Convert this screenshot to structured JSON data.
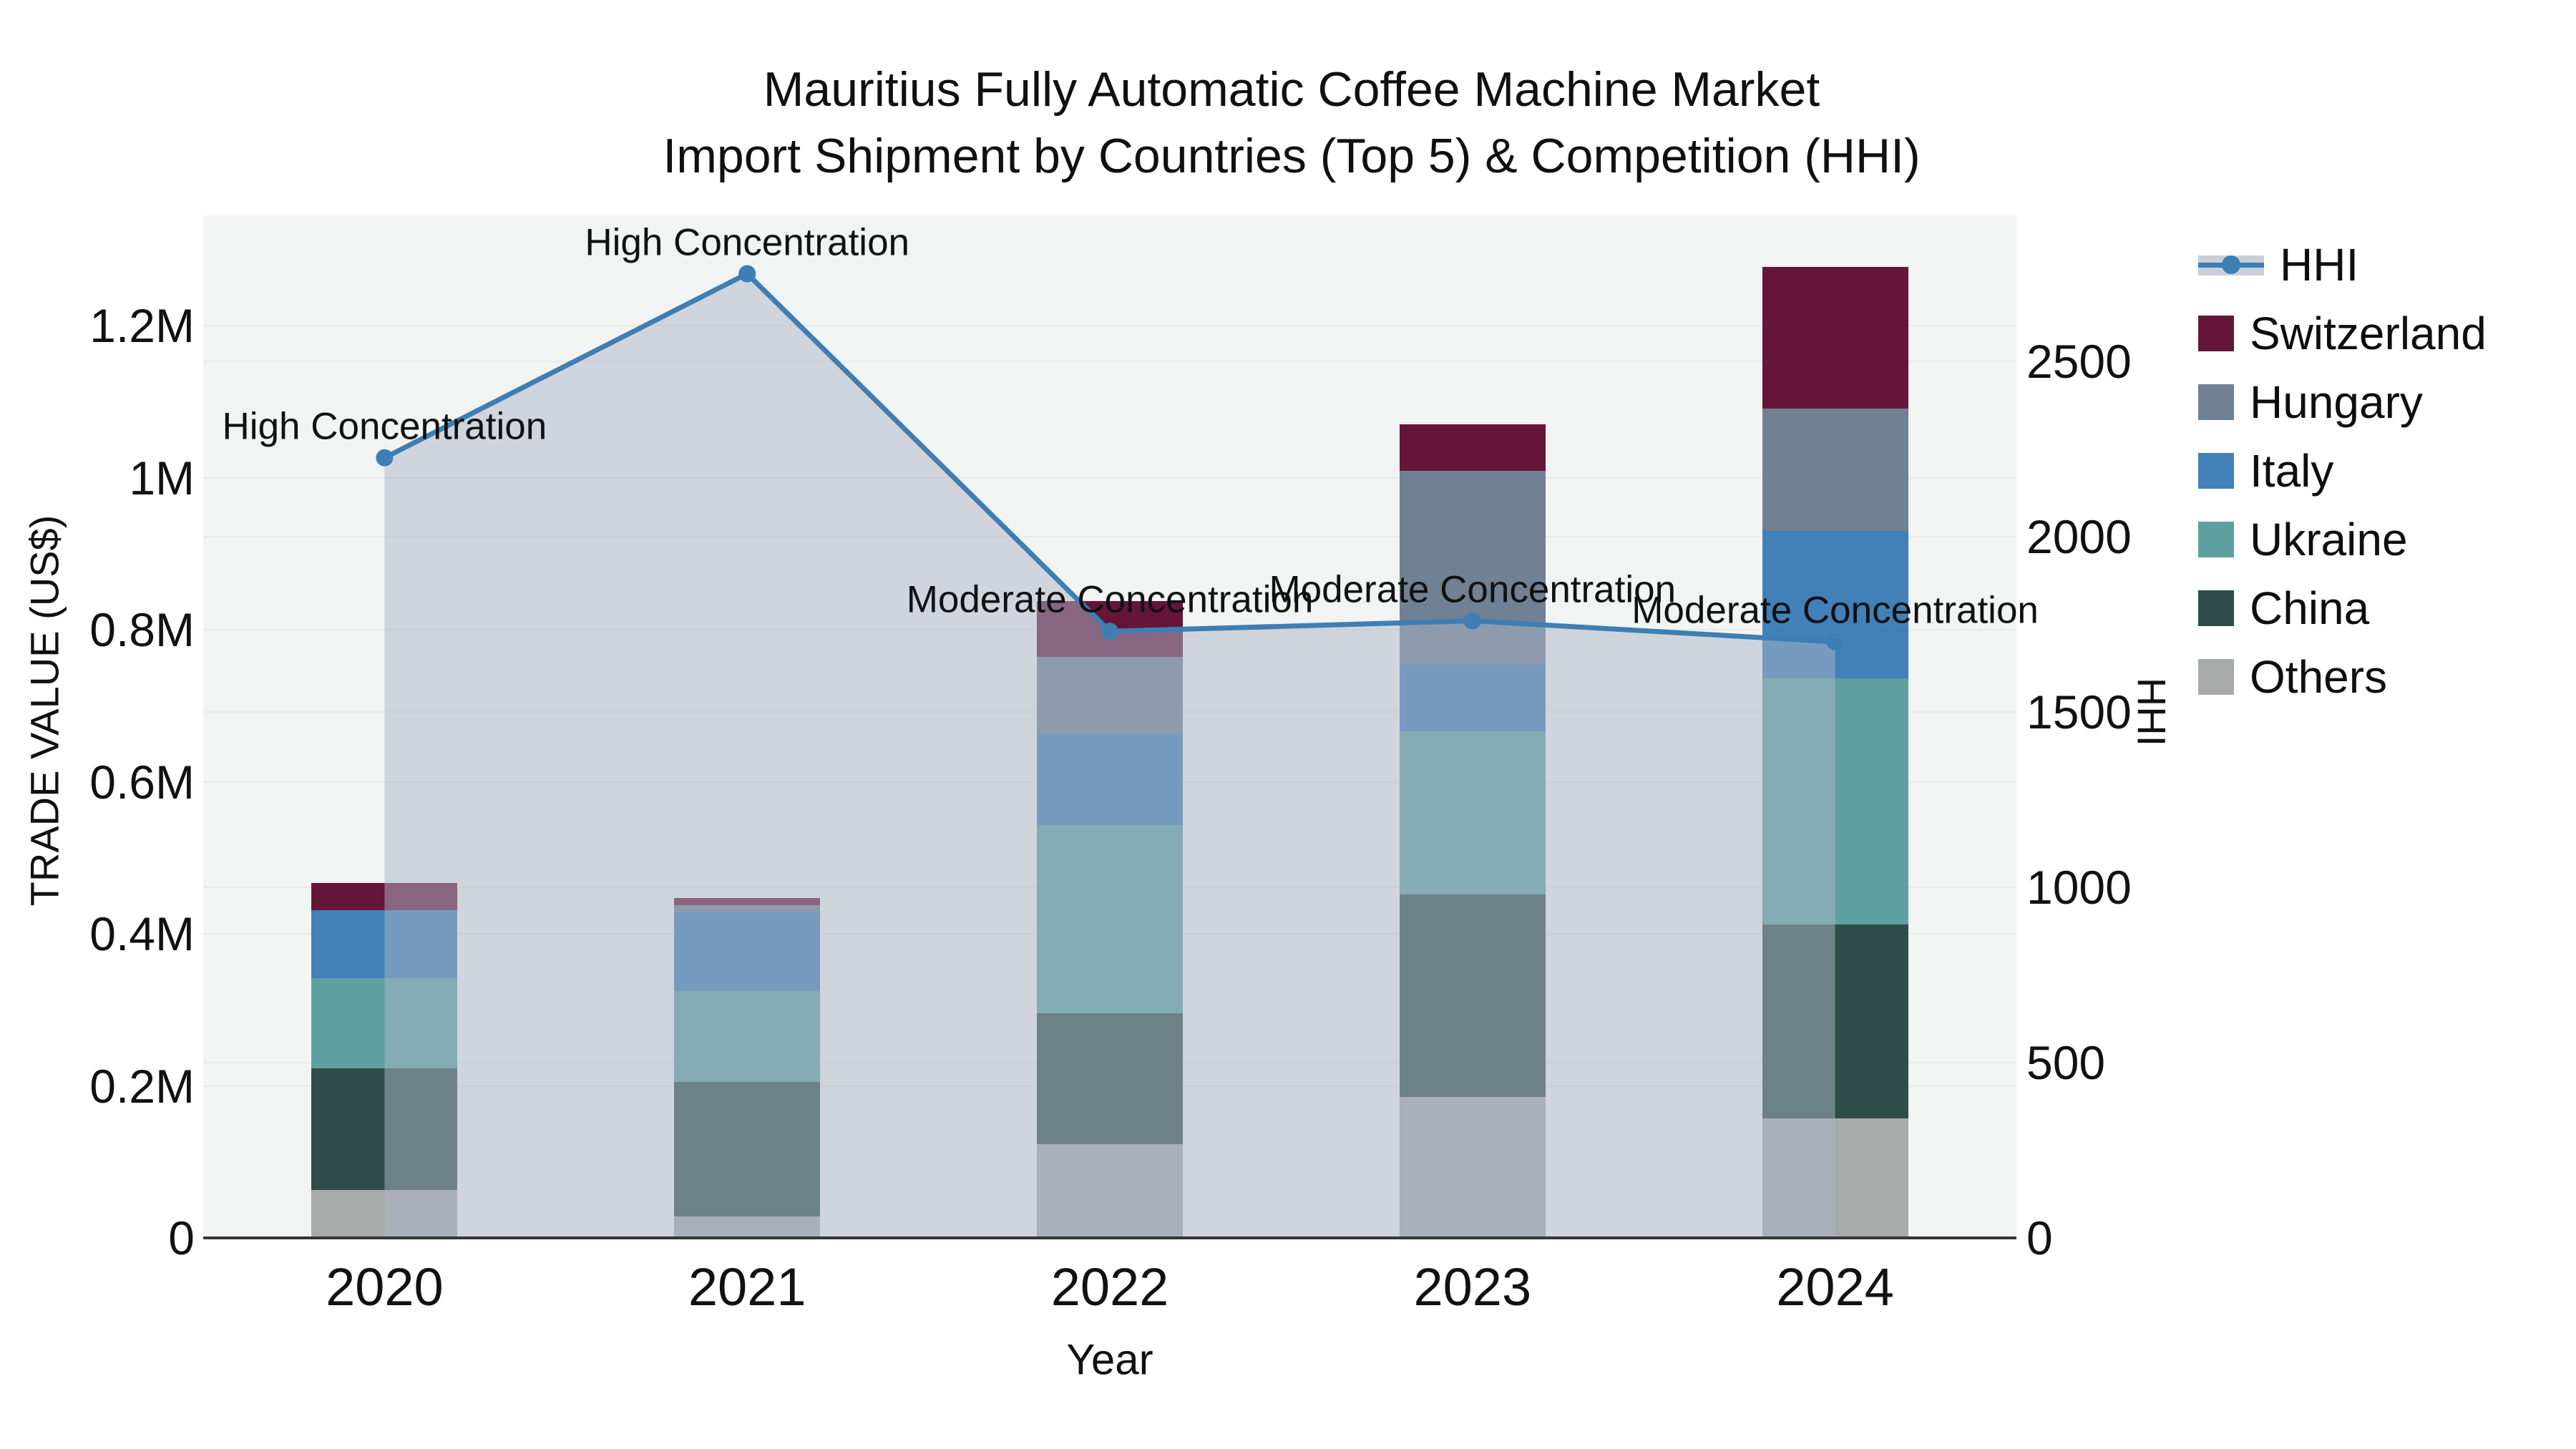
{
  "title": {
    "line1": "Mauritius Fully Automatic Coffee Machine Market",
    "line2": "Import Shipment by Countries (Top 5) & Competition (HHI)"
  },
  "chart_data": {
    "type": "combo: stacked bar (trade value) + line/area (HHI) on secondary axis",
    "categories": [
      "2020",
      "2021",
      "2022",
      "2023",
      "2024"
    ],
    "bar_series_bottom_to_top": [
      {
        "name": "Others",
        "color": "#a9abab",
        "values": [
          63000,
          28000,
          123000,
          185000,
          157000
        ]
      },
      {
        "name": "China",
        "color": "#2e4d49",
        "values": [
          160000,
          177000,
          173000,
          267000,
          255000
        ]
      },
      {
        "name": "Ukraine",
        "color": "#5fa0a1",
        "values": [
          119000,
          120000,
          247000,
          214000,
          324000
        ]
      },
      {
        "name": "Italy",
        "color": "#4280b8",
        "values": [
          89000,
          103000,
          120000,
          88000,
          194000
        ]
      },
      {
        "name": "Hungary",
        "color": "#6f8192",
        "values": [
          0,
          10000,
          101000,
          255000,
          161000
        ]
      },
      {
        "name": "Switzerland",
        "color": "#651538",
        "values": [
          36000,
          9000,
          74000,
          61000,
          186000
        ]
      }
    ],
    "bar_totals": [
      467000,
      447000,
      838000,
      1070000,
      1277000
    ],
    "line_series": {
      "name": "HHI",
      "color": "#3f7eb5",
      "area_color": "rgba(172,182,200,0.5)",
      "values": [
        2225,
        2750,
        1730,
        1760,
        1700
      ]
    },
    "annotations": [
      {
        "year": "2020",
        "text": "High Concentration"
      },
      {
        "year": "2021",
        "text": "High Concentration"
      },
      {
        "year": "2022",
        "text": "Moderate Concentration"
      },
      {
        "year": "2023",
        "text": "Moderate Concentration"
      },
      {
        "year": "2024",
        "text": "Moderate Concentration"
      }
    ],
    "y_left": {
      "label": "TRADE VALUE (US$)",
      "range": [
        0,
        1345000
      ],
      "ticks": [
        {
          "label": "0",
          "value": 0
        },
        {
          "label": "0.2M",
          "value": 200000
        },
        {
          "label": "0.4M",
          "value": 400000
        },
        {
          "label": "0.6M",
          "value": 600000
        },
        {
          "label": "0.8M",
          "value": 800000
        },
        {
          "label": "1M",
          "value": 1000000
        },
        {
          "label": "1.2M",
          "value": 1200000
        }
      ]
    },
    "y_right": {
      "label": "HHI",
      "range": [
        0,
        2916
      ],
      "ticks": [
        {
          "label": "0",
          "value": 0
        },
        {
          "label": "500",
          "value": 500
        },
        {
          "label": "1000",
          "value": 1000
        },
        {
          "label": "1500",
          "value": 1500
        },
        {
          "label": "2000",
          "value": 2000
        },
        {
          "label": "2500",
          "value": 2500
        }
      ]
    },
    "x_axis": {
      "label": "Year"
    },
    "legend": [
      {
        "label": "HHI",
        "glyph": "line-dot-band",
        "color": "#3f7eb5"
      },
      {
        "label": "Switzerland",
        "glyph": "square",
        "color": "#651538"
      },
      {
        "label": "Hungary",
        "glyph": "square",
        "color": "#6f8192"
      },
      {
        "label": "Italy",
        "glyph": "square",
        "color": "#4280b8"
      },
      {
        "label": "Ukraine",
        "glyph": "square",
        "color": "#5fa0a1"
      },
      {
        "label": "China",
        "glyph": "square",
        "color": "#2e4d49"
      },
      {
        "label": "Others",
        "glyph": "square",
        "color": "#a9abab"
      }
    ],
    "layout_hints": {
      "plot_bg": "#f2f3f3",
      "grid_color": "#e7e9ea",
      "grid_on": true,
      "legend_position": "right",
      "area_spans": "from 2020 category center to 2024 category center, filled to zero"
    }
  }
}
